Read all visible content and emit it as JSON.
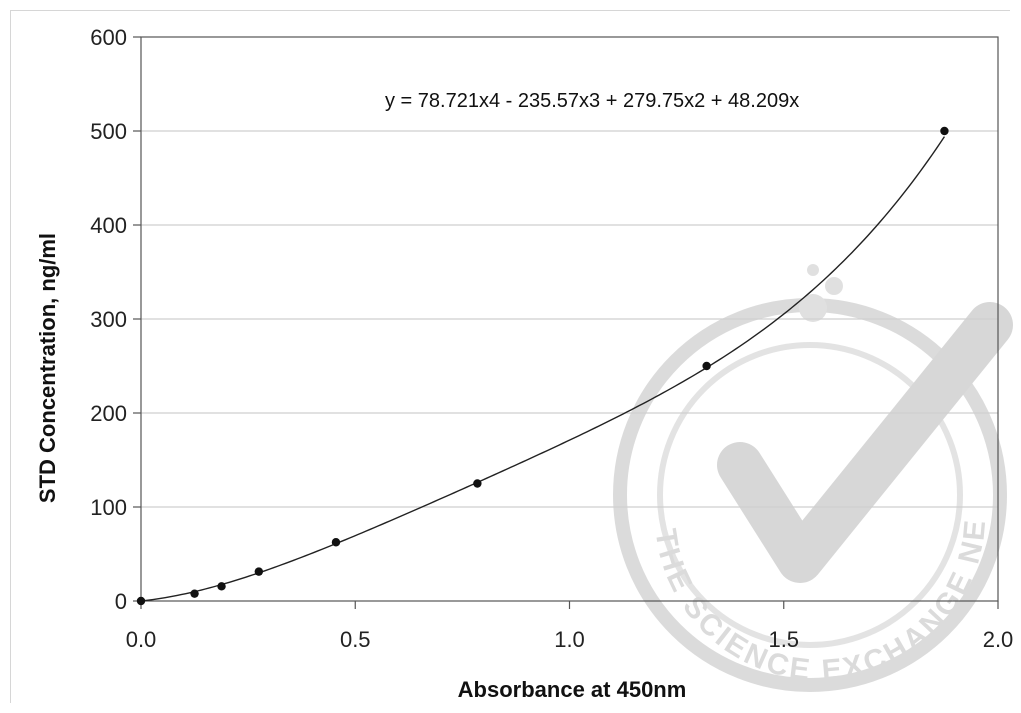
{
  "chart_data": {
    "type": "scatter",
    "title": "",
    "xlabel": "Absorbance at 450nm",
    "ylabel": "STD Concentration, ng/ml",
    "xlim": [
      0,
      2
    ],
    "ylim": [
      0,
      600
    ],
    "x_ticks": [
      "0.0",
      "0.5",
      "1.0",
      "1.5",
      "2.0"
    ],
    "y_ticks": [
      "0",
      "100",
      "200",
      "300",
      "400",
      "500",
      "600"
    ],
    "grid": "horizontal",
    "trendline": {
      "type": "polynomial",
      "equation": "y = 78.721x4 - 235.57x3 + 279.75x2 + 48.209x",
      "coefficients": [
        78.721,
        -235.57,
        279.75,
        48.209,
        0
      ]
    },
    "series": [
      {
        "x": [
          0.0,
          0.125,
          0.188,
          0.275,
          0.455,
          0.785,
          1.32,
          1.875
        ],
        "y": [
          0,
          7.8,
          15.6,
          31.25,
          62.5,
          125,
          250,
          500
        ]
      }
    ]
  },
  "watermark": {
    "text": "THE SCIENCE EXCHANGE NETWORK",
    "icon": "checkmark-flask-icon"
  }
}
